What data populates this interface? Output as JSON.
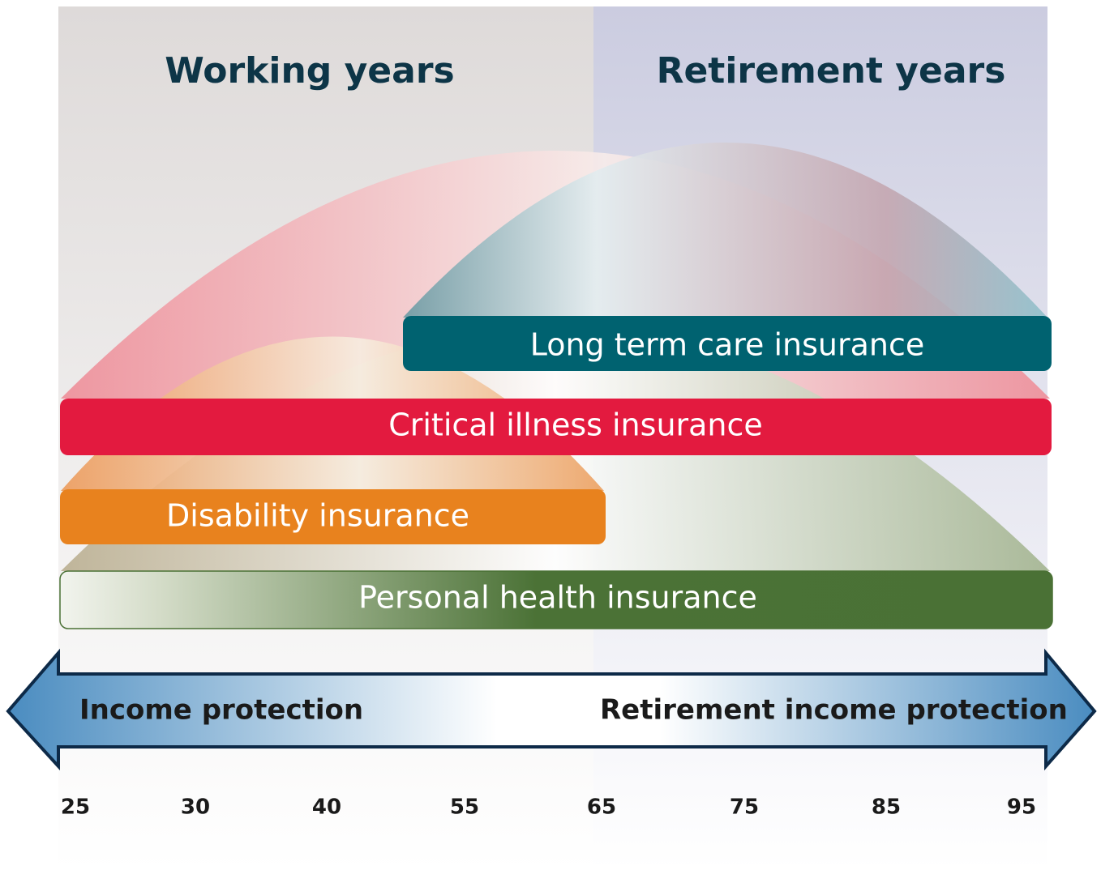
{
  "header": {
    "left": "Working years",
    "right": "Retirement years"
  },
  "bars": [
    {
      "label": "Long term care insurance"
    },
    {
      "label": "Critical illness insurance"
    },
    {
      "label": "Disability insurance"
    },
    {
      "label": "Personal health insurance"
    }
  ],
  "arrow": {
    "left": "Income protection",
    "right": "Retirement income protection"
  },
  "ages": [
    25,
    30,
    40,
    55,
    65,
    75,
    85,
    95
  ]
}
